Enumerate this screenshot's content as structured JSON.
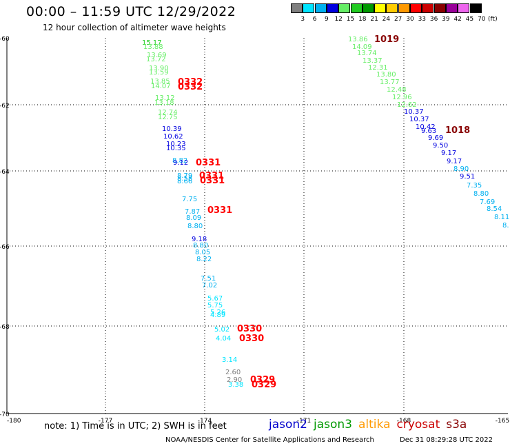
{
  "title": "00:00 – 11:59 UTC 12/29/2022",
  "subtitle": "12 hour collection of altimeter wave heights",
  "legend": {
    "labels": [
      "3",
      "6",
      "9",
      "12",
      "15",
      "18",
      "21",
      "24",
      "27",
      "30",
      "33",
      "36",
      "39",
      "42",
      "45",
      "70"
    ],
    "unit": "(ft)",
    "colors": [
      "#7f7f7f",
      "#00e5ff",
      "#00b0f0",
      "#0000e0",
      "#66ee66",
      "#22cc22",
      "#009900",
      "#ffff00",
      "#ffcc00",
      "#ff9900",
      "#ff0000",
      "#cc0000",
      "#880000",
      "#990099",
      "#ee66ee",
      "#000000"
    ]
  },
  "chart_data": {
    "type": "scatter",
    "x_ticks": [
      "-180",
      "-177",
      "-174",
      "-171",
      "-168",
      "-165"
    ],
    "y_ticks": [
      "-60",
      "-62",
      "-64",
      "-66",
      "-68",
      "-70"
    ],
    "track_west": [
      {
        "v": "15.17",
        "c": "#22cc22"
      },
      {
        "v": "13.88",
        "c": "#66ee66"
      },
      {
        "v": "13.69",
        "c": "#66ee66"
      },
      {
        "v": "13.72",
        "c": "#66ee66"
      },
      {
        "v": "13.90",
        "c": "#66ee66"
      },
      {
        "v": "13.59",
        "c": "#66ee66"
      },
      {
        "v": "13.85",
        "c": "#66ee66"
      },
      {
        "v": "14.07",
        "c": "#66ee66"
      },
      {
        "v": "13.12",
        "c": "#66ee66"
      },
      {
        "v": "13.18",
        "c": "#66ee66"
      },
      {
        "v": "12.74",
        "c": "#66ee66"
      },
      {
        "v": "12.75",
        "c": "#66ee66"
      },
      {
        "v": "10.39",
        "c": "#0000e0"
      },
      {
        "v": "10.62",
        "c": "#0000e0"
      },
      {
        "v": "10.23",
        "c": "#0000e0"
      },
      {
        "v": "10.35",
        "c": "#0000e0"
      },
      {
        "v": "8.82",
        "c": "#00b0f0"
      },
      {
        "v": "9.12",
        "c": "#0000e0"
      },
      {
        "v": "8.79",
        "c": "#00b0f0"
      },
      {
        "v": "8.58",
        "c": "#00b0f0"
      },
      {
        "v": "8.66",
        "c": "#00b0f0"
      },
      {
        "v": "7.75",
        "c": "#00b0f0"
      },
      {
        "v": "7.87",
        "c": "#00b0f0"
      },
      {
        "v": "8.09",
        "c": "#00b0f0"
      },
      {
        "v": "8.80",
        "c": "#00b0f0"
      },
      {
        "v": "9.18",
        "c": "#0000e0"
      },
      {
        "v": "8.80",
        "c": "#00b0f0"
      },
      {
        "v": "8.05",
        "c": "#00b0f0"
      },
      {
        "v": "8.22",
        "c": "#00b0f0"
      },
      {
        "v": "7.51",
        "c": "#00b0f0"
      },
      {
        "v": "7.02",
        "c": "#00b0f0"
      },
      {
        "v": "5.67",
        "c": "#00e5ff"
      },
      {
        "v": "5.75",
        "c": "#00e5ff"
      },
      {
        "v": "5.26",
        "c": "#00e5ff"
      },
      {
        "v": "4.89",
        "c": "#00e5ff"
      },
      {
        "v": "5.02",
        "c": "#00e5ff"
      },
      {
        "v": "4.04",
        "c": "#00e5ff"
      },
      {
        "v": "3.14",
        "c": "#00e5ff"
      },
      {
        "v": "2.60",
        "c": "#7f7f7f"
      },
      {
        "v": "2.90",
        "c": "#7f7f7f"
      },
      {
        "v": "3.38",
        "c": "#00e5ff"
      }
    ],
    "track_east": [
      {
        "v": "13.86",
        "c": "#66ee66"
      },
      {
        "v": "14.09",
        "c": "#66ee66"
      },
      {
        "v": "13.74",
        "c": "#66ee66"
      },
      {
        "v": "13.37",
        "c": "#66ee66"
      },
      {
        "v": "12.31",
        "c": "#66ee66"
      },
      {
        "v": "13.80",
        "c": "#66ee66"
      },
      {
        "v": "13.77",
        "c": "#66ee66"
      },
      {
        "v": "12.48",
        "c": "#66ee66"
      },
      {
        "v": "12.96",
        "c": "#66ee66"
      },
      {
        "v": "12.62",
        "c": "#66ee66"
      },
      {
        "v": "10.37",
        "c": "#0000e0"
      },
      {
        "v": "10.37",
        "c": "#0000e0"
      },
      {
        "v": "10.42",
        "c": "#0000e0"
      },
      {
        "v": "9.63",
        "c": "#0000e0"
      },
      {
        "v": "9.69",
        "c": "#0000e0"
      },
      {
        "v": "9.50",
        "c": "#0000e0"
      },
      {
        "v": "9.17",
        "c": "#0000e0"
      },
      {
        "v": "9.17",
        "c": "#0000e0"
      },
      {
        "v": "8.90",
        "c": "#00b0f0"
      },
      {
        "v": "9.51",
        "c": "#0000e0"
      },
      {
        "v": "7.35",
        "c": "#00b0f0"
      },
      {
        "v": "8.80",
        "c": "#00b0f0"
      },
      {
        "v": "7.69",
        "c": "#00b0f0"
      },
      {
        "v": "8.54",
        "c": "#00b0f0"
      },
      {
        "v": "8.11",
        "c": "#00b0f0"
      },
      {
        "v": "8.",
        "c": "#00b0f0"
      }
    ],
    "time_labels": [
      {
        "t": "0332",
        "c": "#ff0000"
      },
      {
        "t": "0332",
        "c": "#ff0000"
      },
      {
        "t": "0331",
        "c": "#ff0000"
      },
      {
        "t": "0331",
        "c": "#ff0000"
      },
      {
        "t": "0331",
        "c": "#ff0000"
      },
      {
        "t": "0331",
        "c": "#ff0000"
      },
      {
        "t": "0330",
        "c": "#ff0000"
      },
      {
        "t": "0330",
        "c": "#ff0000"
      },
      {
        "t": "0329",
        "c": "#ff0000"
      },
      {
        "t": "0329",
        "c": "#ff0000"
      },
      {
        "t": "1019",
        "c": "#880000"
      },
      {
        "t": "1018",
        "c": "#880000"
      }
    ]
  },
  "note": "note:  1) Time is in UTC;  2) SWH is in feet",
  "satellites": [
    {
      "name": "jason2",
      "color": "#0000cc"
    },
    {
      "name": "jason3",
      "color": "#009900"
    },
    {
      "name": "altika",
      "color": "#ff9900"
    },
    {
      "name": "cryosat",
      "color": "#cc0000"
    },
    {
      "name": "s3a",
      "color": "#880000"
    }
  ],
  "footer": "NOAA/NESDIS Center for Satellite Applications and Research",
  "footer_date": "Dec 31 08:29:28 UTC 2022"
}
